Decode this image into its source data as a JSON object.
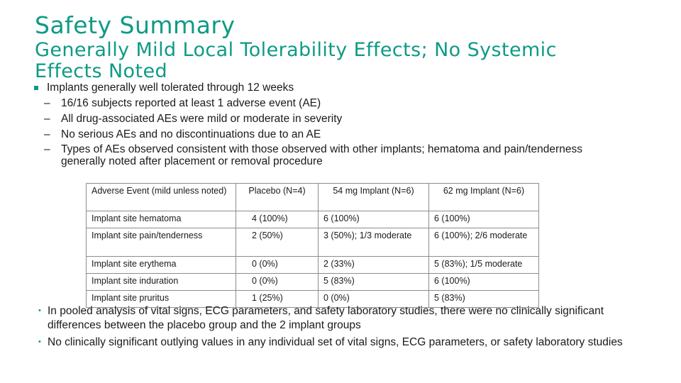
{
  "slide": {
    "title": "Safety Summary",
    "subtitle": "Generally Mild Local Tolerability Effects; No Systemic Effects Noted"
  },
  "bullets": {
    "main": "Implants generally well tolerated through 12 weeks",
    "sub": [
      "16/16 subjects reported at least 1 adverse event (AE)",
      "All drug-associated AEs were mild or moderate in severity",
      "No serious AEs and no discontinuations due to an AE",
      "Types of AEs observed consistent with those observed with other implants; hematoma and pain/tenderness generally noted after placement or removal procedure"
    ]
  },
  "table": {
    "headers": [
      "Adverse Event (mild unless noted)",
      "Placebo (N=4)",
      "54 mg Implant (N=6)",
      "62 mg Implant (N=6)"
    ],
    "rows": [
      [
        "Implant site hematoma",
        "4 (100%)",
        "6 (100%)",
        "6 (100%)"
      ],
      [
        "Implant site pain/tenderness",
        "2 (50%)",
        "3 (50%); 1/3 moderate",
        "6 (100%); 2/6 moderate"
      ],
      [
        "Implant site erythema",
        "0 (0%)",
        "2 (33%)",
        "5 (83%); 1/5 moderate"
      ],
      [
        "Implant site induration",
        "0 (0%)",
        "5 (83%)",
        "6 (100%)"
      ],
      [
        "Implant site pruritus",
        "1 (25%)",
        "0 (0%)",
        "5 (83%)"
      ]
    ]
  },
  "bottom_bullets": [
    "In pooled analysis of vital signs, ECG parameters, and safety laboratory studies, there were no clinically significant differences between the placebo group and the 2 implant groups",
    "No clinically significant outlying values in any individual set of vital signs, ECG parameters, or safety laboratory studies"
  ],
  "colors": {
    "accent": "#0f9a86",
    "text": "#1a1a1a",
    "border": "#8c8c8c"
  }
}
